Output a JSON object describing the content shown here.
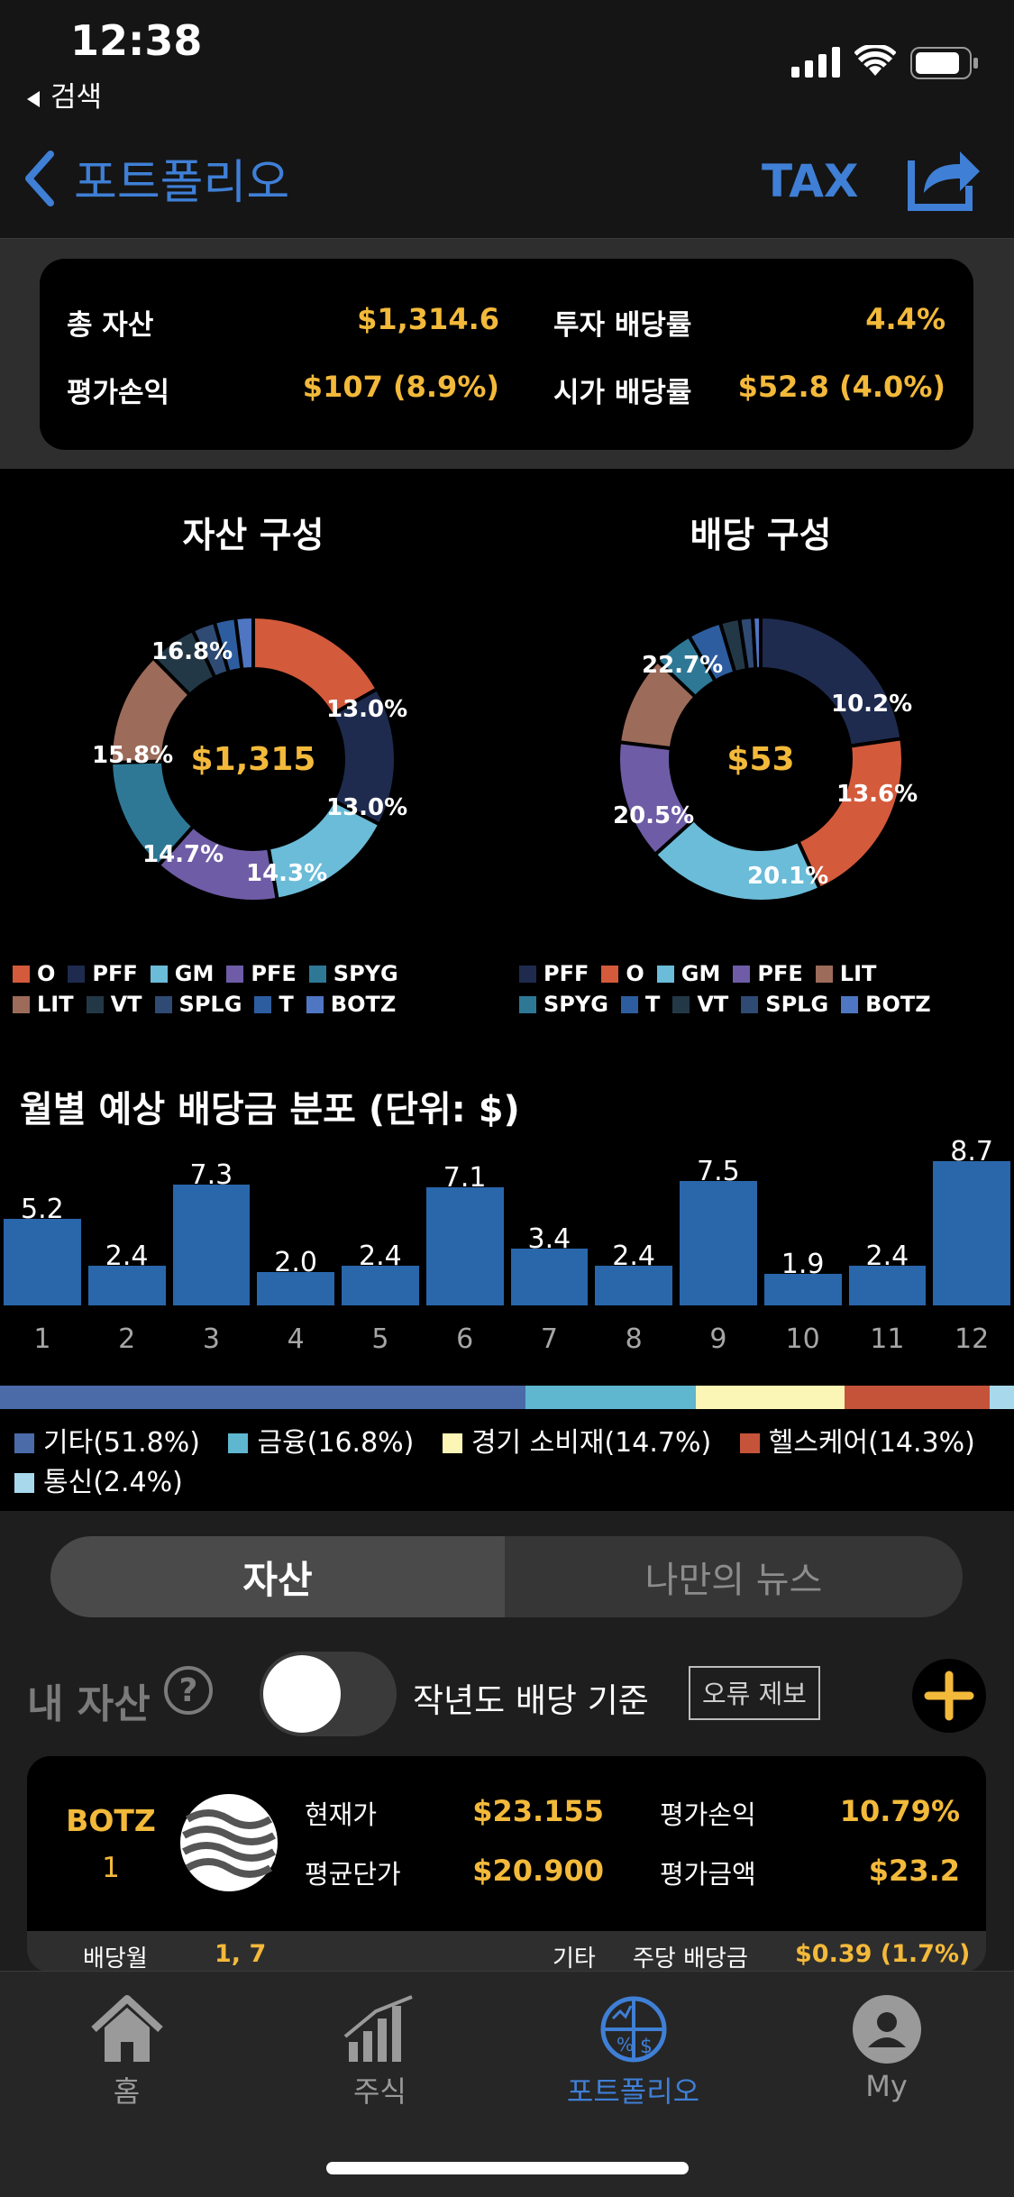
{
  "status": {
    "time": "12:38",
    "back_app": "검색"
  },
  "nav": {
    "back_label": "포트폴리오",
    "tax_label": "TAX"
  },
  "summary": {
    "total_assets_label": "총 자산",
    "total_assets_value": "$1,314.6",
    "invest_yield_label": "투자 배당률",
    "invest_yield_value": "4.4%",
    "pnl_label": "평가손익",
    "pnl_value": "$107 (8.9%)",
    "market_yield_label": "시가 배당률",
    "market_yield_value": "$52.8 (4.0%)"
  },
  "chart_data": [
    {
      "type": "pie",
      "title": "자산 구성",
      "center_label": "$1,315",
      "slices": [
        {
          "name": "O",
          "value": 16.8,
          "color": "#d35a3b"
        },
        {
          "name": "PFF",
          "value": 15.8,
          "color": "#1e2b4e"
        },
        {
          "name": "GM",
          "value": 14.7,
          "color": "#6bbcd8"
        },
        {
          "name": "PFE",
          "value": 14.3,
          "color": "#6e5ca6"
        },
        {
          "name": "SPYG",
          "value": 13.0,
          "color": "#2e7896"
        },
        {
          "name": "LIT",
          "value": 13.0,
          "color": "#9c6b5a"
        },
        {
          "name": "VT",
          "value": 5.4,
          "color": "#233846"
        },
        {
          "name": "SPLG",
          "value": 2.6,
          "color": "#2f4a73"
        },
        {
          "name": "T",
          "value": 2.4,
          "color": "#2d5d9e"
        },
        {
          "name": "BOTZ",
          "value": 2.0,
          "color": "#4f76c2"
        }
      ],
      "shown_labels": [
        "16.8%",
        "13.0%",
        "13.0%",
        "14.3%",
        "14.7%",
        "15.8%"
      ]
    },
    {
      "type": "pie",
      "title": "배당 구성",
      "center_label": "$53",
      "slices": [
        {
          "name": "PFF",
          "value": 22.7,
          "color": "#1e2b4e"
        },
        {
          "name": "O",
          "value": 20.5,
          "color": "#d35a3b"
        },
        {
          "name": "GM",
          "value": 20.1,
          "color": "#6bbcd8"
        },
        {
          "name": "PFE",
          "value": 13.6,
          "color": "#6e5ca6"
        },
        {
          "name": "LIT",
          "value": 10.2,
          "color": "#9c6b5a"
        },
        {
          "name": "SPYG",
          "value": 4.5,
          "color": "#2e7896"
        },
        {
          "name": "T",
          "value": 3.8,
          "color": "#2d5d9e"
        },
        {
          "name": "VT",
          "value": 2.2,
          "color": "#233846"
        },
        {
          "name": "SPLG",
          "value": 1.5,
          "color": "#2f4a73"
        },
        {
          "name": "BOTZ",
          "value": 0.9,
          "color": "#4f76c2"
        }
      ],
      "shown_labels": [
        "22.7%",
        "10.2%",
        "13.6%",
        "20.1%",
        "20.5%"
      ]
    },
    {
      "type": "bar",
      "title": "월별 예상 배당금 분포 (단위: $)",
      "categories": [
        "1",
        "2",
        "3",
        "4",
        "5",
        "6",
        "7",
        "8",
        "9",
        "10",
        "11",
        "12"
      ],
      "values": [
        5.2,
        2.4,
        7.3,
        2.0,
        2.4,
        7.1,
        3.4,
        2.4,
        7.5,
        1.9,
        2.4,
        8.7
      ],
      "value_labels": [
        "5.2",
        "2.4",
        "7.3",
        "2.0",
        "2.4",
        "7.1",
        "3.4",
        "2.4",
        "7.5",
        "1.9",
        "2.4",
        "8.7"
      ],
      "color": "#2a66aa"
    }
  ],
  "sector": {
    "items": [
      {
        "label": "기타(51.8%)",
        "value": 51.8,
        "color": "#4b6aa8"
      },
      {
        "label": "금융(16.8%)",
        "value": 16.8,
        "color": "#5fb6cf"
      },
      {
        "label": "경기 소비재(14.7%)",
        "value": 14.7,
        "color": "#fcf6b6"
      },
      {
        "label": "헬스케어(14.3%)",
        "value": 14.3,
        "color": "#c5533a"
      },
      {
        "label": "통신(2.4%)",
        "value": 2.4,
        "color": "#a8d8ec"
      }
    ]
  },
  "tabs": {
    "assets": "자산",
    "news": "나만의 뉴스"
  },
  "myassets": {
    "title": "내 자산",
    "help": "?",
    "toggle_label": "작년도 배당 기준",
    "report_error": "오류 제보",
    "add": "+"
  },
  "stock": {
    "ticker": "BOTZ",
    "qty": "1",
    "price_label": "현재가",
    "price_value": "$23.155",
    "pnl_label": "평가손익",
    "pnl_value": "10.79%",
    "avg_label": "평균단가",
    "avg_value": "$20.900",
    "eval_label": "평가금액",
    "eval_value": "$23.2",
    "div_month_label": "배당월",
    "div_month_value": "1, 7",
    "sector_label": "기타",
    "per_share_label": "주당 배당금",
    "per_share_value": "$0.39 (1.7%)"
  },
  "tabbar": {
    "home": "홈",
    "stocks": "주식",
    "portfolio": "포트폴리오",
    "my": "My"
  },
  "colors": {
    "accent": "#3f7fd6",
    "gold": "#f3b93a",
    "bar": "#2a66aa"
  }
}
